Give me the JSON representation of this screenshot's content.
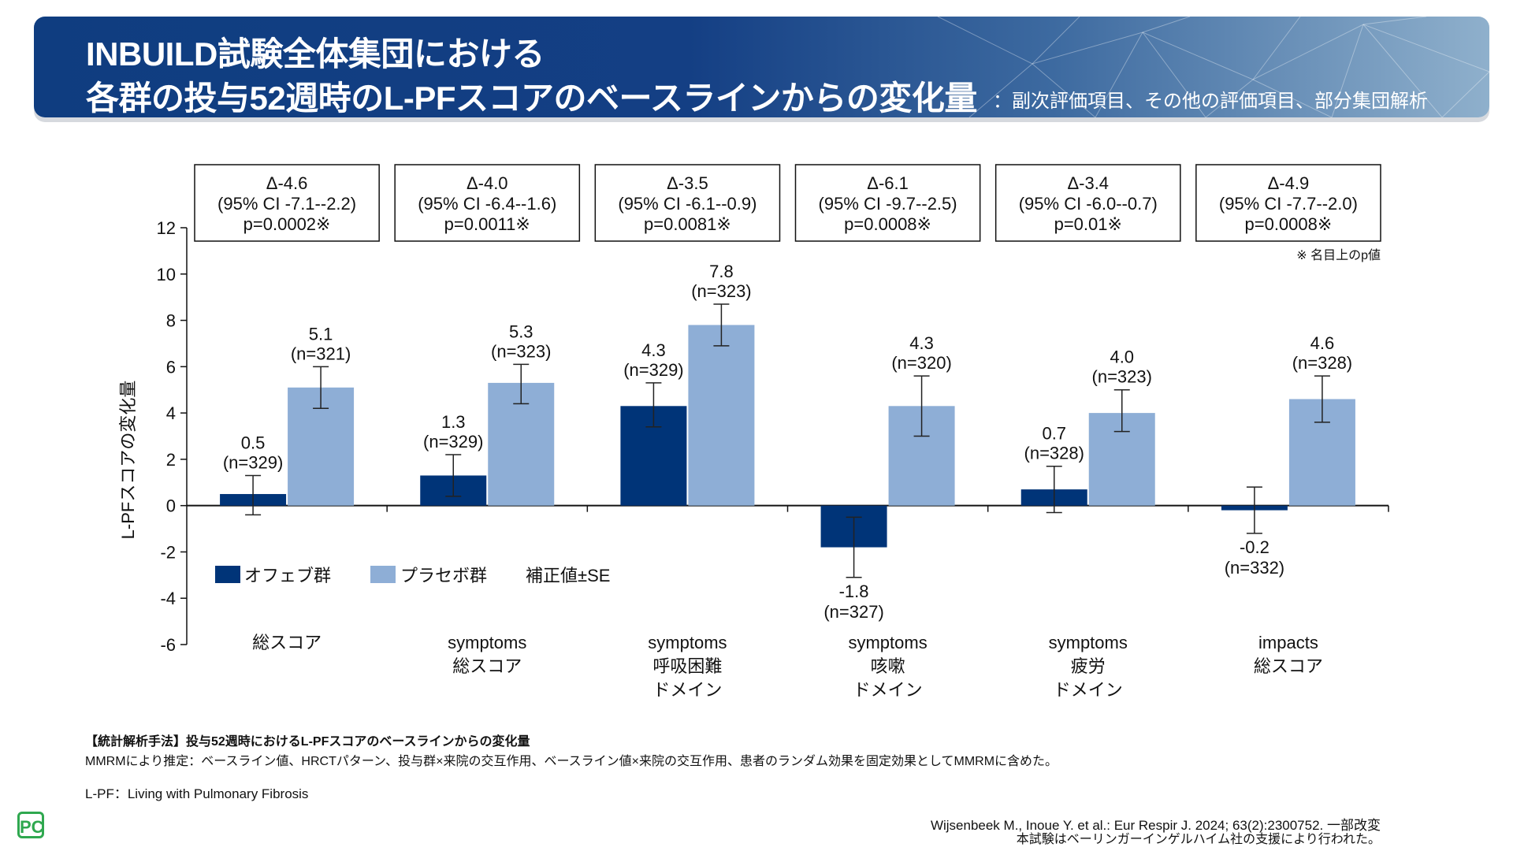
{
  "header": {
    "title_line1": "INBUILD試験全体集団における",
    "title_line2": "各群の投与52週時のL-PFスコアのベースラインからの変化量",
    "subtitle": "：副次評価項目、その他の評価項目、部分集団解析"
  },
  "colors": {
    "ofev": "#003478",
    "placebo": "#8eaed6",
    "header_dark": "#0f3d80"
  },
  "chart_data": {
    "type": "bar",
    "ylabel": "L-PFスコアの変化量",
    "ylim": [
      -6,
      12
    ],
    "yticks": [
      12,
      10,
      8,
      6,
      4,
      2,
      0,
      -2,
      -4,
      -6
    ],
    "categories": [
      {
        "line1": "総スコア",
        "line2": "",
        "line3": ""
      },
      {
        "line1": "symptoms",
        "line2": "総スコア",
        "line3": ""
      },
      {
        "line1": "symptoms",
        "line2": "呼吸困難",
        "line3": "ドメイン"
      },
      {
        "line1": "symptoms",
        "line2": "咳嗽",
        "line3": "ドメイン"
      },
      {
        "line1": "symptoms",
        "line2": "疲労",
        "line3": "ドメイン"
      },
      {
        "line1": "impacts",
        "line2": "総スコア",
        "line3": ""
      }
    ],
    "series": [
      {
        "name": "オフェブ群",
        "values": [
          0.5,
          1.3,
          4.3,
          -1.8,
          0.7,
          -0.2
        ],
        "se_low": [
          -0.4,
          0.4,
          3.4,
          -3.1,
          -0.3,
          -1.2
        ],
        "se_high": [
          1.3,
          2.2,
          5.3,
          -0.5,
          1.7,
          0.8
        ],
        "value_labels": [
          "0.5",
          "1.3",
          "4.3",
          "-1.8",
          "0.7",
          "-0.2"
        ],
        "n_labels": [
          "(n=329)",
          "(n=329)",
          "(n=329)",
          "(n=327)",
          "(n=328)",
          "(n=332)"
        ]
      },
      {
        "name": "プラセボ群",
        "values": [
          5.1,
          5.3,
          7.8,
          4.3,
          4.0,
          4.6
        ],
        "se_low": [
          4.2,
          4.4,
          6.9,
          3.0,
          3.2,
          3.6
        ],
        "se_high": [
          6.0,
          6.1,
          8.7,
          5.6,
          5.0,
          5.6
        ],
        "value_labels": [
          "5.1",
          "5.3",
          "7.8",
          "4.3",
          "4.0",
          "4.6"
        ],
        "n_labels": [
          "(n=321)",
          "(n=323)",
          "(n=323)",
          "(n=320)",
          "(n=323)",
          "(n=328)"
        ]
      }
    ],
    "annotations": [
      {
        "delta": "Δ-4.6",
        "ci": "(95% CI -7.1--2.2)",
        "p": "p=0.0002※"
      },
      {
        "delta": "Δ-4.0",
        "ci": "(95% CI -6.4--1.6)",
        "p": "p=0.0011※"
      },
      {
        "delta": "Δ-3.5",
        "ci": "(95% CI -6.1--0.9)",
        "p": "p=0.0081※"
      },
      {
        "delta": "Δ-6.1",
        "ci": "(95% CI -9.7--2.5)",
        "p": "p=0.0008※"
      },
      {
        "delta": "Δ-3.4",
        "ci": "(95% CI -6.0--0.7)",
        "p": "p=0.01※"
      },
      {
        "delta": "Δ-4.9",
        "ci": "(95% CI -7.7--2.0)",
        "p": "p=0.0008※"
      }
    ],
    "nominal_note": "※ 名目上のp値",
    "legend": {
      "ofev": "オフェブ群",
      "placebo": "プラセボ群",
      "se_note": "補正値±SE"
    }
  },
  "footer": {
    "method_title": "【統計解析手法】投与52週時におけるL-PFスコアのベースラインからの変化量",
    "method_text": "MMRMにより推定：ベースライン値、HRCTパターン、投与群×来院の交互作用、ベースライン値×来院の交互作用、患者のランダム効果を固定効果としてMMRMに含めた。",
    "abbreviation": "L-PF：Living with Pulmonary Fibrosis",
    "citation": "Wijsenbeek M., Inoue Y. et al.: Eur Respir J. 2024; 63(2):2300752. 一部改変",
    "support": "本試験はベーリンガーインゲルハイム社の支援により行われた。"
  },
  "logo_text": "PC"
}
